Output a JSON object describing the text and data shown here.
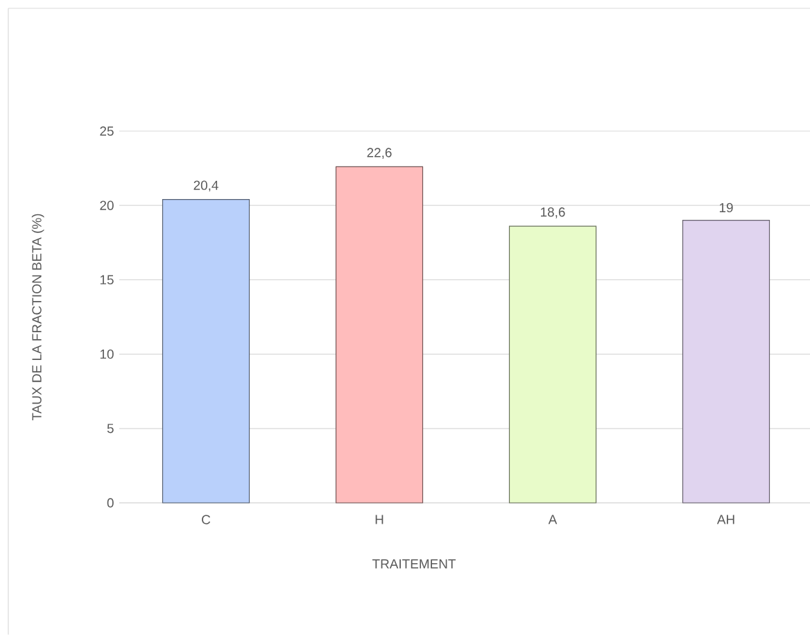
{
  "chart_data": {
    "type": "bar",
    "xlabel": "TRAITEMENT",
    "ylabel": "TAUX DE LA FRACTION BETA  (%)",
    "categories": [
      "C",
      "H",
      "A",
      "AH"
    ],
    "values": [
      20.4,
      22.6,
      18.6,
      19
    ],
    "value_labels": [
      "20,4",
      "22,6",
      "18,6",
      "19"
    ],
    "colors": [
      "#b9d0fb",
      "#ffbcbc",
      "#e8fbc9",
      "#e0d4ef"
    ],
    "ylim": [
      0,
      25
    ],
    "yticks": [
      0,
      5,
      10,
      15,
      20,
      25
    ],
    "grid": "y"
  }
}
